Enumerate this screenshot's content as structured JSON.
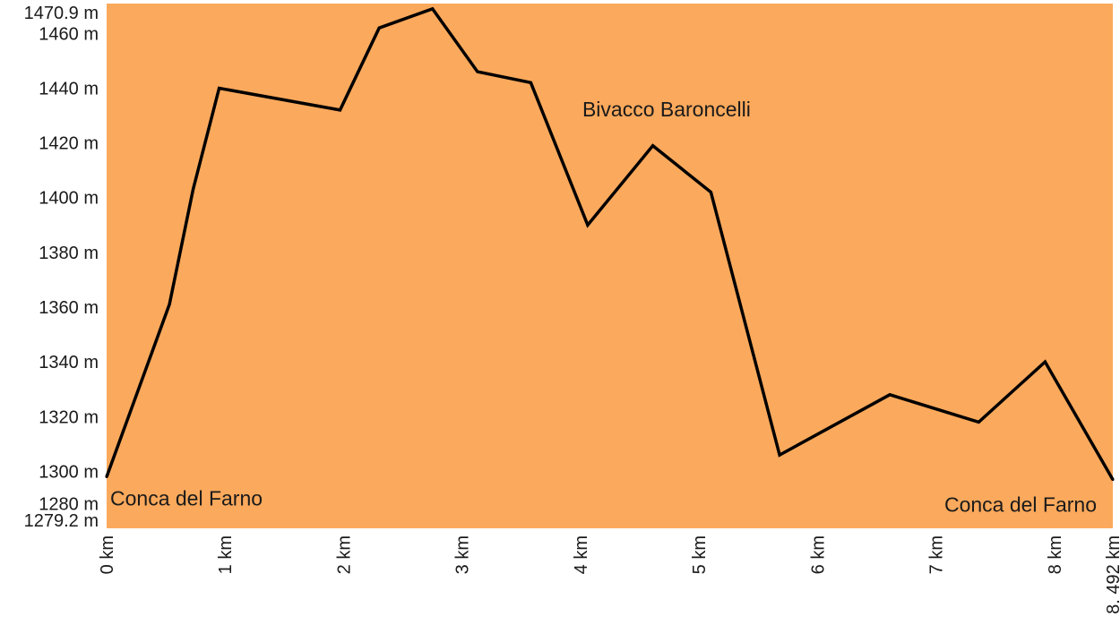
{
  "chart_data": {
    "type": "area",
    "title": "",
    "xlabel": "",
    "ylabel": "",
    "xlim": [
      0,
      8.492
    ],
    "ylim": [
      1279.2,
      1470.9
    ],
    "grid": false,
    "legend": "none",
    "colors": {
      "plot_background": "#FBA95C",
      "line": "#000000"
    },
    "y_tick_labels": [
      {
        "value": 1470.9,
        "label": "1470.9 m"
      },
      {
        "value": 1460,
        "label": "1460 m"
      },
      {
        "value": 1440,
        "label": "1440 m"
      },
      {
        "value": 1420,
        "label": "1420 m"
      },
      {
        "value": 1400,
        "label": "1400 m"
      },
      {
        "value": 1380,
        "label": "1380 m"
      },
      {
        "value": 1360,
        "label": "1360 m"
      },
      {
        "value": 1340,
        "label": "1340 m"
      },
      {
        "value": 1320,
        "label": "1320 m"
      },
      {
        "value": 1300,
        "label": "1300 m"
      },
      {
        "value": 1280,
        "label": "1280 m"
      },
      {
        "value": 1279.2,
        "label": "1279.2 m"
      }
    ],
    "x_tick_labels": [
      {
        "value": 0,
        "label": "0 km"
      },
      {
        "value": 1,
        "label": "1 km"
      },
      {
        "value": 2,
        "label": "2 km"
      },
      {
        "value": 3,
        "label": "3 km"
      },
      {
        "value": 4,
        "label": "4 km"
      },
      {
        "value": 5,
        "label": "5 km"
      },
      {
        "value": 6,
        "label": "6 km"
      },
      {
        "value": 7,
        "label": "7 km"
      },
      {
        "value": 8,
        "label": "8 km"
      },
      {
        "value": 8.492,
        "label": "8. 492 km"
      }
    ],
    "series": [
      {
        "x": [
          0,
          0.53,
          0.73,
          0.95,
          1.97,
          2.3,
          2.75,
          3.13,
          3.58,
          4.06,
          4.61,
          5.1,
          5.68,
          6.61,
          7.36,
          7.92,
          8.492
        ],
        "y": [
          1298,
          1361,
          1403,
          1440,
          1432,
          1462,
          1469,
          1446,
          1442,
          1390,
          1419,
          1402,
          1306,
          1328,
          1318,
          1340,
          1297
        ]
      }
    ],
    "annotations": [
      {
        "text": "Conca del Farno",
        "x": 0,
        "y": 1298,
        "align": "start"
      },
      {
        "text": "Bivacco Baroncelli",
        "x": 4.0,
        "y": 1433,
        "align": "start"
      },
      {
        "text": "Conca del Farno",
        "x": 8.492,
        "y": 1297,
        "align": "end"
      }
    ]
  }
}
